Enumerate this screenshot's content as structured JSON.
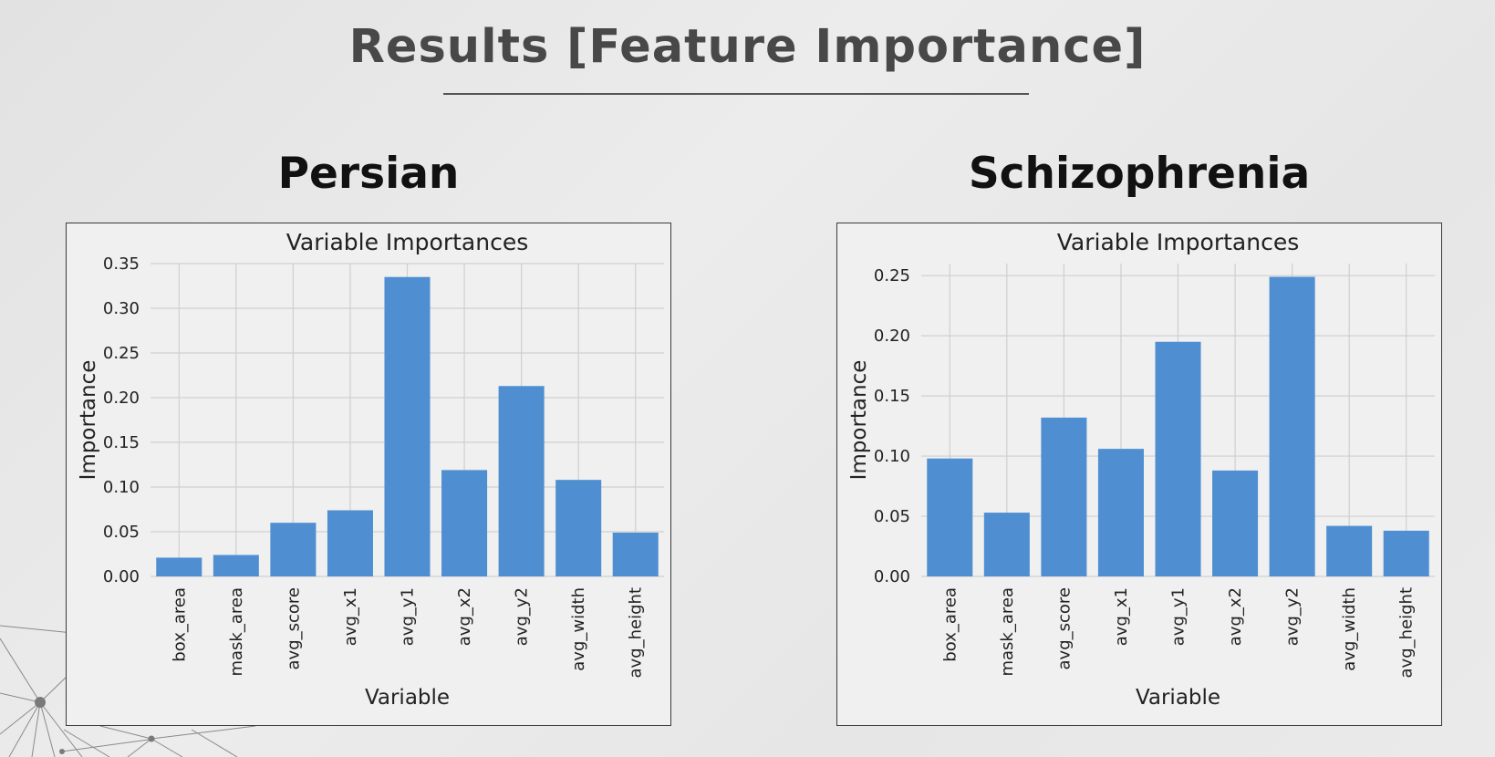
{
  "slide_title": "Results [Feature Importance]",
  "charts": [
    {
      "heading": "Persian"
    },
    {
      "heading": "Schizophrenia"
    }
  ],
  "chart_data": [
    {
      "type": "bar",
      "title": "Variable Importances",
      "xlabel": "Variable",
      "ylabel": "Importance",
      "categories": [
        "box_area",
        "mask_area",
        "avg_score",
        "avg_x1",
        "avg_y1",
        "avg_x2",
        "avg_y2",
        "avg_width",
        "avg_height"
      ],
      "values": [
        0.021,
        0.024,
        0.06,
        0.074,
        0.335,
        0.119,
        0.213,
        0.108,
        0.049
      ],
      "ylim": [
        0,
        0.35
      ],
      "yticks": [
        "0.00",
        "0.05",
        "0.10",
        "0.15",
        "0.20",
        "0.25",
        "0.30",
        "0.35"
      ],
      "grid": true,
      "bar_color": "#4f8fd1"
    },
    {
      "type": "bar",
      "title": "Variable Importances",
      "xlabel": "Variable",
      "ylabel": "Importance",
      "categories": [
        "box_area",
        "mask_area",
        "avg_score",
        "avg_x1",
        "avg_y1",
        "avg_x2",
        "avg_y2",
        "avg_width",
        "avg_height"
      ],
      "values": [
        0.098,
        0.053,
        0.132,
        0.106,
        0.195,
        0.088,
        0.249,
        0.042,
        0.038
      ],
      "ylim": [
        0,
        0.26
      ],
      "yticks": [
        "0.00",
        "0.05",
        "0.10",
        "0.15",
        "0.20",
        "0.25"
      ],
      "grid": true,
      "bar_color": "#4f8fd1"
    }
  ]
}
